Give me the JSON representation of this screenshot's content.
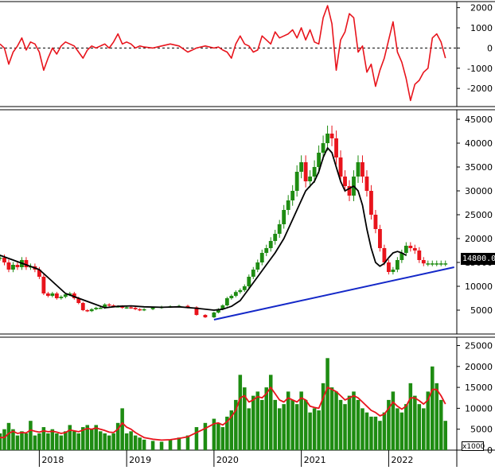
{
  "chart_data": [
    {
      "type": "line",
      "panel": "oscillator",
      "ylim": [
        -2900,
        2300
      ],
      "yticks": [
        2000,
        1000,
        0,
        -1000,
        -2000
      ],
      "zero_line": "dashed",
      "color": "#e8141c",
      "x": [
        2017.55,
        2017.6,
        2017.65,
        2017.7,
        2017.75,
        2017.8,
        2017.85,
        2017.9,
        2017.95,
        2018.0,
        2018.05,
        2018.1,
        2018.15,
        2018.2,
        2018.25,
        2018.3,
        2018.35,
        2018.4,
        2018.45,
        2018.5,
        2018.55,
        2018.6,
        2018.65,
        2018.7,
        2018.75,
        2018.8,
        2018.85,
        2018.9,
        2018.95,
        2019.0,
        2019.05,
        2019.1,
        2019.15,
        2019.2,
        2019.3,
        2019.4,
        2019.5,
        2019.6,
        2019.7,
        2019.8,
        2019.9,
        2020.0,
        2020.05,
        2020.1,
        2020.15,
        2020.2,
        2020.25,
        2020.3,
        2020.35,
        2020.4,
        2020.45,
        2020.5,
        2020.55,
        2020.6,
        2020.65,
        2020.7,
        2020.75,
        2020.8,
        2020.85,
        2020.9,
        2020.95,
        2021.0,
        2021.05,
        2021.1,
        2021.15,
        2021.2,
        2021.25,
        2021.3,
        2021.35,
        2021.4,
        2021.45,
        2021.5,
        2021.55,
        2021.6,
        2021.65,
        2021.7,
        2021.75,
        2021.8,
        2021.85,
        2021.9,
        2021.95,
        2022.0,
        2022.05,
        2022.1,
        2022.15,
        2022.2,
        2022.25,
        2022.3,
        2022.35,
        2022.4,
        2022.45,
        2022.5,
        2022.55,
        2022.6,
        2022.65
      ],
      "values": [
        200,
        0,
        -800,
        -200,
        100,
        500,
        -100,
        300,
        200,
        -200,
        -1100,
        -500,
        0,
        -300,
        100,
        300,
        200,
        100,
        -200,
        -500,
        -100,
        100,
        0,
        100,
        200,
        0,
        300,
        700,
        200,
        300,
        200,
        0,
        100,
        50,
        0,
        100,
        200,
        100,
        -200,
        0,
        100,
        0,
        50,
        -100,
        -200,
        -500,
        200,
        600,
        200,
        100,
        -200,
        -100,
        600,
        400,
        200,
        800,
        500,
        600,
        700,
        900,
        500,
        1000,
        400,
        900,
        300,
        200,
        1500,
        2100,
        1200,
        -1100,
        400,
        800,
        1700,
        1500,
        -200,
        100,
        -1200,
        -800,
        -1900,
        -1100,
        -500,
        400,
        1300,
        -200,
        -700,
        -1500,
        -2600,
        -1800,
        -1600,
        -1200,
        -1000,
        500,
        700,
        300,
        -500
      ]
    },
    {
      "type": "line",
      "panel": "price",
      "ylim": [
        0,
        47000
      ],
      "yticks": [
        5000,
        10000,
        15000,
        20000,
        25000,
        30000,
        35000,
        40000,
        45000
      ],
      "last_price_label": "14800.00",
      "series": [
        {
          "role": "close",
          "up_color": "#1e8c12",
          "down_color": "#e8141c",
          "x": [
            2017.55,
            2017.6,
            2017.65,
            2017.7,
            2017.75,
            2017.8,
            2017.85,
            2017.9,
            2017.95,
            2018.0,
            2018.05,
            2018.1,
            2018.15,
            2018.2,
            2018.25,
            2018.3,
            2018.35,
            2018.4,
            2018.45,
            2018.5,
            2018.55,
            2018.6,
            2018.65,
            2018.7,
            2018.75,
            2018.8,
            2018.85,
            2018.9,
            2018.95,
            2019.0,
            2019.05,
            2019.1,
            2019.15,
            2019.2,
            2019.3,
            2019.4,
            2019.5,
            2019.6,
            2019.7,
            2019.8,
            2019.9,
            2020.0,
            2020.05,
            2020.1,
            2020.15,
            2020.2,
            2020.25,
            2020.3,
            2020.35,
            2020.4,
            2020.45,
            2020.5,
            2020.55,
            2020.6,
            2020.65,
            2020.7,
            2020.75,
            2020.8,
            2020.85,
            2020.9,
            2020.95,
            2021.0,
            2021.05,
            2021.1,
            2021.15,
            2021.2,
            2021.25,
            2021.3,
            2021.35,
            2021.4,
            2021.45,
            2021.5,
            2021.55,
            2021.6,
            2021.65,
            2021.7,
            2021.75,
            2021.8,
            2021.85,
            2021.9,
            2021.95,
            2022.0,
            2022.05,
            2022.1,
            2022.15,
            2022.2,
            2022.25,
            2022.3,
            2022.35,
            2022.4,
            2022.45,
            2022.5,
            2022.55,
            2022.6,
            2022.65
          ],
          "values": [
            16000,
            15000,
            13500,
            14500,
            14000,
            15500,
            14000,
            14200,
            13500,
            12000,
            8500,
            8000,
            8500,
            7500,
            7800,
            8300,
            8500,
            7500,
            6500,
            5000,
            4800,
            5200,
            5500,
            5500,
            6200,
            6000,
            5800,
            5800,
            5500,
            5600,
            5500,
            5200,
            5000,
            5200,
            5500,
            5700,
            5800,
            5900,
            5600,
            4000,
            3500,
            4500,
            5200,
            6000,
            7500,
            8000,
            8800,
            9200,
            10000,
            12000,
            13500,
            15000,
            17000,
            18000,
            19500,
            21000,
            23000,
            26000,
            28000,
            30000,
            34000,
            36000,
            32000,
            33000,
            35000,
            38000,
            40000,
            42000,
            41000,
            37000,
            33000,
            31000,
            29000,
            33000,
            36000,
            33000,
            30000,
            25000,
            22000,
            18000,
            15000,
            13000,
            13500,
            15500,
            17000,
            18500,
            18000,
            17500,
            15500,
            14800,
            14800,
            14800,
            14800,
            14800,
            14800
          ]
        },
        {
          "role": "moving-average",
          "color": "#000000",
          "x": [
            2017.55,
            2017.7,
            2017.85,
            2018.0,
            2018.15,
            2018.3,
            2018.45,
            2018.6,
            2018.75,
            2018.9,
            2019.05,
            2019.2,
            2019.4,
            2019.6,
            2019.8,
            2020.0,
            2020.1,
            2020.2,
            2020.3,
            2020.4,
            2020.5,
            2020.6,
            2020.7,
            2020.8,
            2020.9,
            2021.0,
            2021.05,
            2021.1,
            2021.15,
            2021.2,
            2021.25,
            2021.3,
            2021.35,
            2021.4,
            2021.45,
            2021.5,
            2021.55,
            2021.6,
            2021.65,
            2021.7,
            2021.75,
            2021.8,
            2021.85,
            2021.9,
            2021.95,
            2022.0,
            2022.05,
            2022.1,
            2022.15,
            2022.2
          ],
          "values": [
            16500,
            15500,
            14500,
            13500,
            11000,
            8500,
            7500,
            6500,
            5500,
            5800,
            5900,
            5700,
            5600,
            5700,
            5400,
            5000,
            5200,
            5800,
            7000,
            9500,
            12000,
            14500,
            17000,
            20000,
            24000,
            28000,
            30000,
            31000,
            32000,
            34000,
            37000,
            39000,
            38000,
            35000,
            32000,
            30000,
            30500,
            31000,
            30000,
            27000,
            22000,
            18000,
            15000,
            14200,
            14800,
            16000,
            17000,
            17300,
            17000,
            16500
          ]
        },
        {
          "role": "trendline",
          "color": "#1428c8",
          "x": [
            2020.0,
            2022.75
          ],
          "values": [
            3000,
            14000
          ]
        }
      ]
    },
    {
      "type": "bar",
      "panel": "volume",
      "ylim": [
        0,
        27000
      ],
      "yticks": [
        0,
        5000,
        10000,
        15000,
        20000,
        25000
      ],
      "unit": "x1000",
      "bar_color": "#1e8c12",
      "ma_color": "#e8141c",
      "x": [
        2017.55,
        2017.6,
        2017.65,
        2017.7,
        2017.75,
        2017.8,
        2017.85,
        2017.9,
        2017.95,
        2018.0,
        2018.05,
        2018.1,
        2018.15,
        2018.2,
        2018.25,
        2018.3,
        2018.35,
        2018.4,
        2018.45,
        2018.5,
        2018.55,
        2018.6,
        2018.65,
        2018.7,
        2018.75,
        2018.8,
        2018.85,
        2018.9,
        2018.95,
        2019.0,
        2019.05,
        2019.1,
        2019.15,
        2019.2,
        2019.3,
        2019.4,
        2019.5,
        2019.6,
        2019.7,
        2019.8,
        2019.9,
        2020.0,
        2020.05,
        2020.1,
        2020.15,
        2020.2,
        2020.25,
        2020.3,
        2020.35,
        2020.4,
        2020.45,
        2020.5,
        2020.55,
        2020.6,
        2020.65,
        2020.7,
        2020.75,
        2020.8,
        2020.85,
        2020.9,
        2020.95,
        2021.0,
        2021.05,
        2021.1,
        2021.15,
        2021.2,
        2021.25,
        2021.3,
        2021.35,
        2021.4,
        2021.45,
        2021.5,
        2021.55,
        2021.6,
        2021.65,
        2021.7,
        2021.75,
        2021.8,
        2021.85,
        2021.9,
        2021.95,
        2022.0,
        2022.05,
        2022.1,
        2022.15,
        2022.2,
        2022.25,
        2022.3,
        2022.35,
        2022.4,
        2022.45,
        2022.5,
        2022.55,
        2022.6,
        2022.65
      ],
      "values": [
        4000,
        5000,
        6500,
        5000,
        3500,
        4500,
        4000,
        7000,
        3500,
        4000,
        5500,
        4000,
        5000,
        4000,
        3500,
        4500,
        6000,
        4500,
        4000,
        5500,
        6000,
        5000,
        6000,
        4500,
        4000,
        3500,
        4000,
        6500,
        10000,
        4000,
        4500,
        3500,
        3000,
        2500,
        2200,
        2000,
        2500,
        3000,
        3500,
        5500,
        6500,
        7500,
        6500,
        5500,
        8000,
        9500,
        12000,
        18000,
        15000,
        10000,
        13000,
        14000,
        12000,
        15000,
        18000,
        12000,
        10000,
        11000,
        14000,
        12000,
        11000,
        14000,
        12000,
        9000,
        10000,
        9500,
        16000,
        22000,
        15000,
        14000,
        12000,
        11000,
        13000,
        14000,
        12000,
        10000,
        9000,
        8000,
        8000,
        7000,
        9000,
        12000,
        14000,
        10000,
        9000,
        11000,
        16000,
        13000,
        11000,
        10000,
        14000,
        20000,
        16000,
        12000,
        7000
      ],
      "ma_values": [
        3000,
        3000,
        4000,
        4500,
        4000,
        4200,
        4100,
        4800,
        4500,
        4300,
        4600,
        4400,
        4500,
        4300,
        4000,
        4200,
        4800,
        4600,
        4400,
        4800,
        5200,
        5000,
        5300,
        5000,
        4700,
        4300,
        4200,
        5000,
        6500,
        5500,
        5000,
        4200,
        3600,
        3000,
        2600,
        2400,
        2500,
        2800,
        3200,
        4200,
        5200,
        6300,
        6500,
        6000,
        6800,
        8000,
        9500,
        12500,
        13000,
        11500,
        12000,
        12800,
        12500,
        13500,
        15000,
        13500,
        12000,
        11500,
        12500,
        12000,
        11500,
        12500,
        12000,
        10500,
        10200,
        10000,
        12500,
        15000,
        14500,
        14000,
        13000,
        12000,
        12500,
        13000,
        12500,
        11500,
        10500,
        9500,
        9000,
        8200,
        8600,
        10000,
        11500,
        10500,
        9800,
        10500,
        12500,
        12500,
        11800,
        11000,
        12000,
        14500,
        14500,
        13000,
        11000
      ]
    }
  ],
  "x_axis": {
    "labels": [
      {
        "year": 2018,
        "text": "2018"
      },
      {
        "year": 2019,
        "text": "2019"
      },
      {
        "year": 2020,
        "text": "2020"
      },
      {
        "year": 2021,
        "text": "2021"
      },
      {
        "year": 2022,
        "text": "2022"
      }
    ],
    "range": [
      2017.55,
      2022.78
    ]
  },
  "volume_unit_label": "x1000"
}
